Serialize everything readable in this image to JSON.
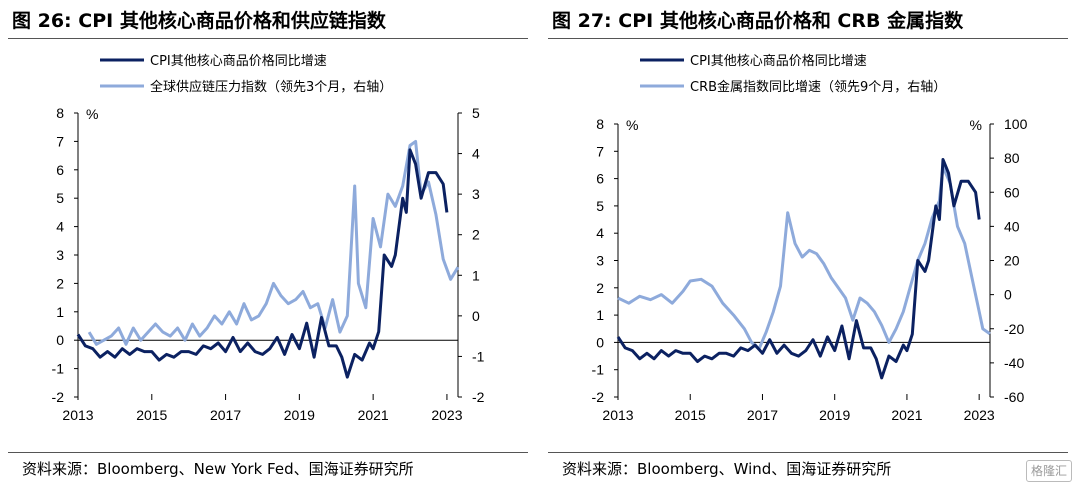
{
  "charts": [
    {
      "title": "图 26:  CPI 其他核心商品价格和供应链指数",
      "source": "资料来源：Bloomberg、New York Fed、国海证券研究所",
      "chart_data": {
        "type": "line",
        "title": "图 26:  CPI 其他核心商品价格和供应链指数",
        "ylabel": "%",
        "ylim": [
          -2,
          8
        ],
        "yticks": [
          "8",
          "7",
          "6",
          "5",
          "4",
          "3",
          "2",
          "1",
          "0",
          "-1",
          "-2"
        ],
        "y2lim": [
          -2,
          5
        ],
        "y2ticks": [
          "5",
          "4",
          "3",
          "2",
          "1",
          "0",
          "-1",
          "-2"
        ],
        "xlim": [
          2013,
          2023.3
        ],
        "xticks": [
          "2013",
          "2015",
          "2017",
          "2019",
          "2021",
          "2023"
        ],
        "legend_position": "top-left",
        "series": [
          {
            "name": "CPI其他核心商品价格同比增速",
            "axis": "left",
            "color": "#0b2161",
            "x": [
              2013.0,
              2013.2,
              2013.4,
              2013.6,
              2013.8,
              2014.0,
              2014.2,
              2014.4,
              2014.6,
              2014.8,
              2015.0,
              2015.2,
              2015.4,
              2015.6,
              2015.8,
              2016.0,
              2016.2,
              2016.4,
              2016.6,
              2016.8,
              2017.0,
              2017.2,
              2017.4,
              2017.6,
              2017.8,
              2018.0,
              2018.2,
              2018.4,
              2018.6,
              2018.8,
              2019.0,
              2019.2,
              2019.4,
              2019.6,
              2019.8,
              2020.0,
              2020.15,
              2020.3,
              2020.5,
              2020.7,
              2020.9,
              2021.0,
              2021.15,
              2021.3,
              2021.5,
              2021.6,
              2021.8,
              2021.9,
              2022.0,
              2022.15,
              2022.3,
              2022.5,
              2022.7,
              2022.9,
              2023.0
            ],
            "values": [
              0.2,
              -0.2,
              -0.3,
              -0.6,
              -0.4,
              -0.6,
              -0.3,
              -0.5,
              -0.3,
              -0.4,
              -0.4,
              -0.7,
              -0.5,
              -0.6,
              -0.4,
              -0.4,
              -0.5,
              -0.2,
              -0.3,
              -0.1,
              -0.4,
              0.1,
              -0.4,
              -0.1,
              -0.4,
              -0.5,
              -0.3,
              0.1,
              -0.5,
              0.2,
              -0.3,
              0.6,
              -0.6,
              0.8,
              -0.2,
              -0.2,
              -0.6,
              -1.3,
              -0.5,
              -0.7,
              -0.1,
              -0.3,
              0.3,
              3.0,
              2.6,
              3.0,
              5.0,
              4.5,
              6.7,
              6.2,
              5.0,
              5.9,
              5.9,
              5.5,
              4.5
            ]
          },
          {
            "name": "全球供应链压力指数（领先3个月，右轴）",
            "axis": "right",
            "color": "#8eaadb",
            "x": [
              2013.3,
              2013.5,
              2013.7,
              2013.9,
              2014.1,
              2014.3,
              2014.5,
              2014.7,
              2014.9,
              2015.1,
              2015.3,
              2015.5,
              2015.7,
              2015.9,
              2016.1,
              2016.3,
              2016.5,
              2016.7,
              2016.9,
              2017.1,
              2017.3,
              2017.5,
              2017.7,
              2017.9,
              2018.1,
              2018.3,
              2018.5,
              2018.7,
              2018.9,
              2019.1,
              2019.3,
              2019.5,
              2019.7,
              2019.9,
              2020.1,
              2020.3,
              2020.5,
              2020.6,
              2020.8,
              2021.0,
              2021.2,
              2021.4,
              2021.6,
              2021.8,
              2022.0,
              2022.15,
              2022.3,
              2022.5,
              2022.7,
              2022.9,
              2023.1,
              2023.3
            ],
            "values": [
              -0.4,
              -0.7,
              -0.6,
              -0.5,
              -0.3,
              -0.7,
              -0.3,
              -0.6,
              -0.4,
              -0.2,
              -0.4,
              -0.5,
              -0.3,
              -0.6,
              -0.2,
              -0.5,
              -0.3,
              0.0,
              -0.2,
              0.1,
              -0.2,
              0.3,
              -0.1,
              0.0,
              0.3,
              0.8,
              0.5,
              0.3,
              0.4,
              0.6,
              0.2,
              0.3,
              -0.3,
              0.4,
              -0.4,
              0.0,
              3.2,
              0.8,
              0.2,
              2.4,
              1.7,
              3.0,
              2.7,
              3.2,
              4.2,
              4.3,
              3.0,
              3.3,
              2.5,
              1.4,
              0.9,
              1.2
            ]
          }
        ]
      }
    },
    {
      "title": "图 27:  CPI 其他核心商品价格和 CRB 金属指数",
      "source": "资料来源：Bloomberg、Wind、国海证券研究所",
      "chart_data": {
        "type": "line",
        "title": "图 27:  CPI 其他核心商品价格和 CRB 金属指数",
        "ylabel": "%",
        "y2label": "%",
        "ylim": [
          -2,
          8
        ],
        "yticks": [
          "8",
          "7",
          "6",
          "5",
          "4",
          "3",
          "2",
          "1",
          "0",
          "-1",
          "-2"
        ],
        "y2lim": [
          -60,
          100
        ],
        "y2ticks": [
          "100",
          "80",
          "60",
          "40",
          "20",
          "0",
          "-20",
          "-40",
          "-60"
        ],
        "xlim": [
          2013,
          2023.3
        ],
        "xticks": [
          "2013",
          "2015",
          "2017",
          "2019",
          "2021",
          "2023"
        ],
        "legend_position": "top-left",
        "series": [
          {
            "name": "CPI其他核心商品价格同比增速",
            "axis": "left",
            "color": "#0b2161",
            "x": [
              2013.0,
              2013.2,
              2013.4,
              2013.6,
              2013.8,
              2014.0,
              2014.2,
              2014.4,
              2014.6,
              2014.8,
              2015.0,
              2015.2,
              2015.4,
              2015.6,
              2015.8,
              2016.0,
              2016.2,
              2016.4,
              2016.6,
              2016.8,
              2017.0,
              2017.2,
              2017.4,
              2017.6,
              2017.8,
              2018.0,
              2018.2,
              2018.4,
              2018.6,
              2018.8,
              2019.0,
              2019.2,
              2019.4,
              2019.6,
              2019.8,
              2020.0,
              2020.15,
              2020.3,
              2020.5,
              2020.7,
              2020.9,
              2021.0,
              2021.15,
              2021.3,
              2021.5,
              2021.6,
              2021.8,
              2021.9,
              2022.0,
              2022.15,
              2022.3,
              2022.5,
              2022.7,
              2022.9,
              2023.0
            ],
            "values": [
              0.2,
              -0.2,
              -0.3,
              -0.6,
              -0.4,
              -0.6,
              -0.3,
              -0.5,
              -0.3,
              -0.4,
              -0.4,
              -0.7,
              -0.5,
              -0.6,
              -0.4,
              -0.4,
              -0.5,
              -0.2,
              -0.3,
              -0.1,
              -0.4,
              0.1,
              -0.4,
              -0.1,
              -0.4,
              -0.5,
              -0.3,
              0.1,
              -0.5,
              0.2,
              -0.3,
              0.6,
              -0.6,
              0.8,
              -0.2,
              -0.2,
              -0.6,
              -1.3,
              -0.5,
              -0.7,
              -0.1,
              -0.3,
              0.3,
              3.0,
              2.6,
              3.0,
              5.0,
              4.5,
              6.7,
              6.2,
              5.0,
              5.9,
              5.9,
              5.5,
              4.5
            ]
          },
          {
            "name": "CRB金属指数同比增速（领先9个月，右轴）",
            "axis": "right",
            "color": "#8eaadb",
            "x": [
              2013.0,
              2013.3,
              2013.6,
              2013.9,
              2014.2,
              2014.5,
              2014.8,
              2015.0,
              2015.3,
              2015.6,
              2015.9,
              2016.2,
              2016.5,
              2016.7,
              2016.9,
              2017.1,
              2017.3,
              2017.5,
              2017.7,
              2017.9,
              2018.1,
              2018.3,
              2018.5,
              2018.7,
              2018.9,
              2019.1,
              2019.3,
              2019.5,
              2019.7,
              2019.9,
              2020.1,
              2020.3,
              2020.5,
              2020.7,
              2020.9,
              2021.1,
              2021.3,
              2021.5,
              2021.7,
              2021.9,
              2022.0,
              2022.2,
              2022.4,
              2022.6,
              2022.8,
              2023.0,
              2023.1,
              2023.3
            ],
            "values": [
              -2,
              -5,
              -1,
              -3,
              0,
              -5,
              2,
              8,
              9,
              5,
              -5,
              -12,
              -20,
              -28,
              -32,
              -22,
              -10,
              5,
              48,
              30,
              22,
              26,
              24,
              18,
              10,
              4,
              -2,
              -15,
              -2,
              -5,
              -10,
              -18,
              -28,
              -20,
              -10,
              5,
              20,
              30,
              45,
              55,
              75,
              65,
              40,
              30,
              10,
              -10,
              -20,
              -23
            ]
          }
        ]
      }
    }
  ],
  "watermark": "格隆汇"
}
